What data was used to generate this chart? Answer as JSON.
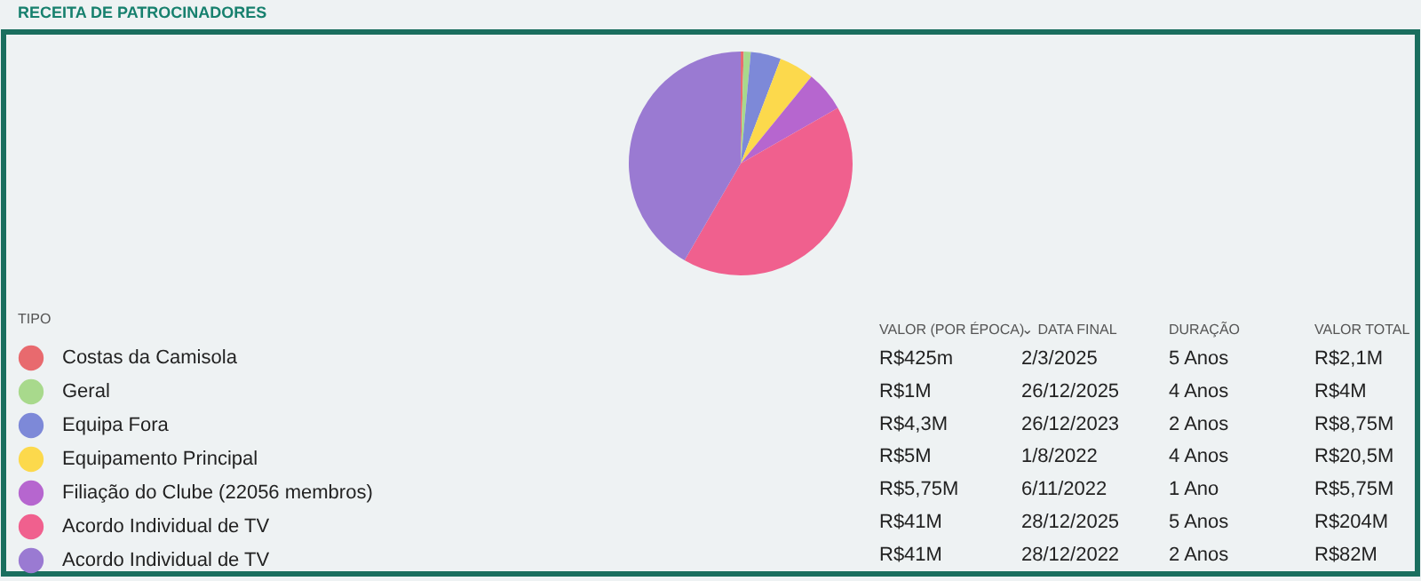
{
  "chart_data": {
    "type": "pie",
    "title": "RECEITA DE PATROCINADORES",
    "legend_title": "TIPO",
    "legend": "bottom left",
    "categories": [
      "Costas da Camisola",
      "Geral",
      "Equipa Fora",
      "Equipamento Principal",
      "Filiação do Clube (22056 membros)",
      "Acordo Individual de TV",
      "Acordo Individual de TV"
    ],
    "values": [
      0.425,
      1,
      4.3,
      5,
      5.75,
      41,
      41
    ],
    "colors": [
      "#e86a6e",
      "#a8d98c",
      "#7d89d8",
      "#fcd94c",
      "#b666cf",
      "#f0608e",
      "#9a7ad2"
    ],
    "value_labels": [
      "R$425m",
      "R$1M",
      "R$4,3M",
      "R$5M",
      "R$5,75M",
      "R$41M",
      "R$41M"
    ],
    "annotations": [
      "VALOR (POR ÉPOCA)",
      "⌄ DATA FINAL",
      "DURAÇÃO",
      "VALOR TOTAL",
      "2/3/2025",
      "5 Anos",
      "R$2,1M",
      "26/12/2025",
      "4 Anos",
      "R$4M",
      "26/12/2023",
      "2 Anos",
      "R$8,75M",
      "1/8/2022",
      "4 Anos",
      "R$20,5M",
      "6/11/2022",
      "1 Ano",
      "R$5,75M",
      "28/12/2025",
      "5 Anos",
      "R$204M",
      "28/12/2022",
      "2 Anos",
      "R$82M"
    ]
  }
}
